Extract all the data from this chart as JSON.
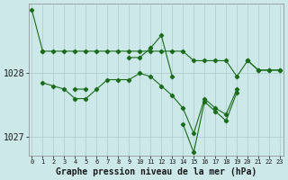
{
  "title": "Graphe pression niveau de la mer (hPa)",
  "bg_color": "#cce8e8",
  "grid_color": "#aacccc",
  "line_color": "#1a6b1a",
  "x_labels": [
    "0",
    "1",
    "2",
    "3",
    "4",
    "5",
    "6",
    "7",
    "8",
    "9",
    "10",
    "11",
    "12",
    "13",
    "14",
    "15",
    "16",
    "17",
    "18",
    "19",
    "20",
    "21",
    "22",
    "23"
  ],
  "ylim": [
    1026.7,
    1029.1
  ],
  "yticks": [
    1027,
    1028
  ],
  "series1": [
    1029.0,
    1028.35,
    null,
    null,
    1027.75,
    1027.75,
    null,
    null,
    null,
    1028.25,
    1028.25,
    1028.4,
    1028.6,
    1027.95,
    null,
    null,
    null,
    null,
    null,
    null,
    1028.2,
    1028.05,
    1028.05,
    1028.05
  ],
  "series2": [
    null,
    1028.35,
    1028.35,
    1028.35,
    1028.35,
    1028.35,
    1028.35,
    1028.35,
    1028.35,
    1028.35,
    1028.35,
    1028.35,
    1028.35,
    1028.35,
    1028.35,
    1028.2,
    1028.2,
    1028.2,
    1028.2,
    1027.95,
    1028.2,
    1028.05,
    1028.05,
    1028.05
  ],
  "series3": [
    null,
    1027.85,
    1027.8,
    1027.75,
    1027.6,
    1027.6,
    1027.75,
    1027.9,
    1027.9,
    1027.9,
    1028.0,
    1027.95,
    1027.8,
    1027.65,
    1027.45,
    1027.05,
    1027.6,
    1027.45,
    1027.35,
    1027.75,
    null,
    null,
    null,
    null
  ],
  "series4": [
    null,
    null,
    null,
    null,
    null,
    null,
    null,
    null,
    null,
    null,
    null,
    null,
    null,
    null,
    1027.2,
    1026.75,
    1027.55,
    1027.4,
    1027.25,
    1027.7,
    null,
    null,
    null,
    null
  ]
}
